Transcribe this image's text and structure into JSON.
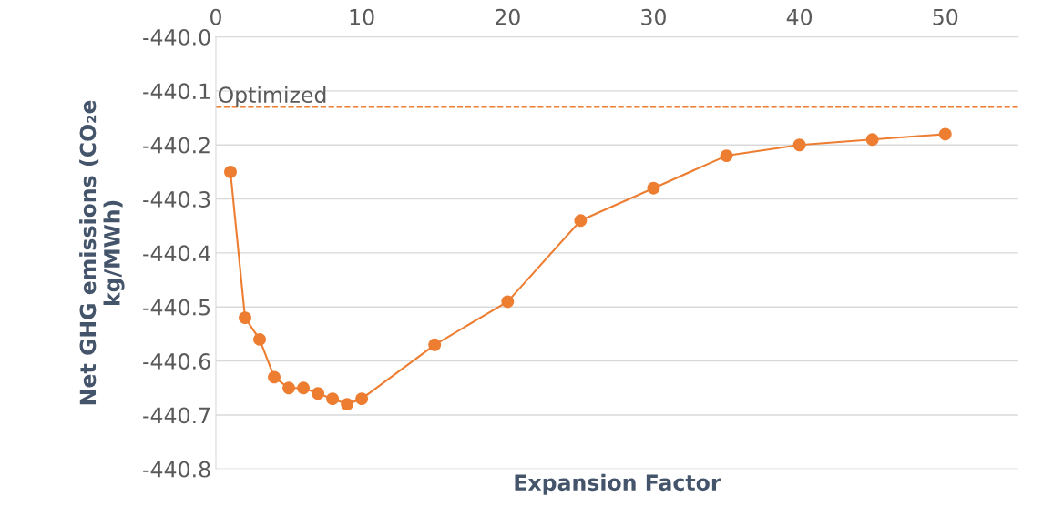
{
  "chart_data": {
    "type": "line",
    "xlabel": "Expansion Factor",
    "ylabel": "Net GHG emissions (CO₂e\nkg/MWh)",
    "x": [
      1,
      2,
      3,
      4,
      5,
      6,
      7,
      8,
      9,
      10,
      15,
      20,
      25,
      30,
      35,
      40,
      45,
      50
    ],
    "series": [
      {
        "color": "#ed7d31",
        "values": [
          -440.25,
          -440.52,
          -440.56,
          -440.63,
          -440.65,
          -440.65,
          -440.66,
          -440.67,
          -440.68,
          -440.67,
          -440.57,
          -440.49,
          -440.34,
          -440.28,
          -440.22,
          -440.2,
          -440.19,
          -440.18
        ]
      }
    ],
    "marker": "circle",
    "line_style": "solid",
    "xlim": [
      0,
      55
    ],
    "xticks": [
      0,
      10,
      20,
      30,
      40,
      50
    ],
    "ylim": [
      -440.8,
      -440.0
    ],
    "yticks": [
      {
        "value": -440.8,
        "label": "-440.8"
      },
      {
        "value": -440.7,
        "label": "-440.7"
      },
      {
        "value": -440.6,
        "label": "-440.6"
      },
      {
        "value": -440.5,
        "label": "-440.5"
      },
      {
        "value": -440.4,
        "label": "-440.4"
      },
      {
        "value": -440.3,
        "label": "-440.3"
      },
      {
        "value": -440.2,
        "label": "-440.2"
      },
      {
        "value": -440.1,
        "label": "-440.1"
      },
      {
        "value": -440.0,
        "label": "-440.0"
      }
    ],
    "ref_lines": [
      {
        "axis": "y",
        "value": -440.13,
        "label": "Optimized",
        "color": "#ed7d31",
        "line_style": "dashed"
      }
    ],
    "grid": "y",
    "legend": false
  }
}
